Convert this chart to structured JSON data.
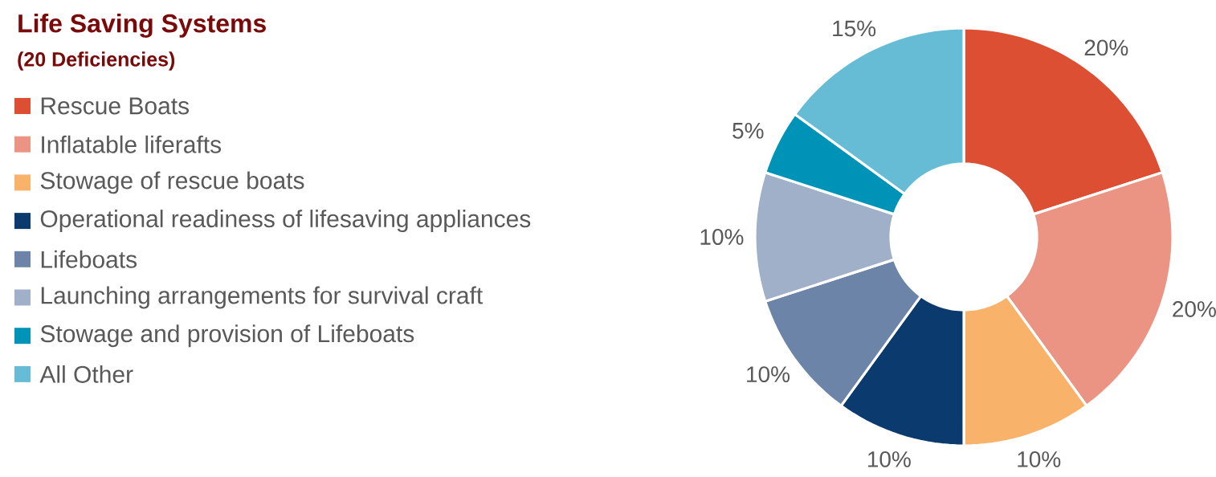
{
  "chart_data": {
    "type": "donut",
    "title": "Life Saving Systems",
    "subtitle": "(20 Deficiencies)",
    "categories": [
      "Rescue Boats",
      "Inflatable liferafts",
      "Stowage of rescue boats",
      "Operational readiness of lifesaving appliances",
      "Lifeboats",
      "Launching  arrangements for survival craft",
      "Stowage and provision of Lifeboats",
      "All Other"
    ],
    "values": [
      20,
      20,
      10,
      10,
      10,
      10,
      5,
      15
    ],
    "colors": [
      "#dc4f33",
      "#eb9483",
      "#f8b26a",
      "#0b3a6e",
      "#6b84a8",
      "#9fb0c8",
      "#0093b8",
      "#66bcd4"
    ],
    "value_labels": [
      "20%",
      "20%",
      "10%",
      "10%",
      "10%",
      "10%",
      "5%",
      "15%"
    ],
    "legend": "left"
  }
}
